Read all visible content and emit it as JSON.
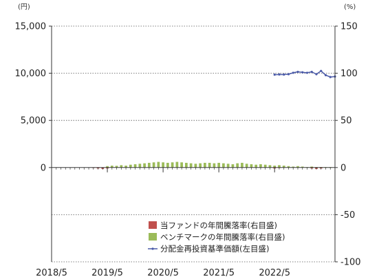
{
  "chart_data": {
    "type": "bar",
    "left_axis_unit": "(円)",
    "right_axis_unit": "(%)",
    "y_left": {
      "range": [
        -10000,
        15000
      ],
      "ticks": [
        15000,
        10000,
        5000,
        0
      ],
      "tick_labels": [
        "15,000",
        "10,000",
        "5,000",
        "0"
      ]
    },
    "y_right": {
      "range": [
        -100,
        150
      ],
      "ticks": [
        150,
        100,
        50,
        0,
        -50,
        -100
      ],
      "tick_labels": [
        "150",
        "100",
        "50",
        "0",
        "-50",
        "-100"
      ]
    },
    "x_ticks": [
      "2018/5",
      "2019/5",
      "2020/5",
      "2021/5",
      "2022/5"
    ],
    "x_tick_months": [
      0,
      12,
      24,
      36,
      48
    ],
    "x_range_months": [
      0,
      61
    ],
    "grid": "horizontal dotted",
    "legend_position": "bottom-right",
    "legend": [
      {
        "label": "当ファンドの年間騰落率(右目盛)",
        "color": "#c0504d"
      },
      {
        "label": "ベンチマークの年間騰落率(右目盛)",
        "color": "#9bbb59"
      },
      {
        "label": "分配金再投資基準価額(左目盛)",
        "color": "#4a5aa8"
      }
    ],
    "series": [
      {
        "name": "ベンチマークの年間騰落率(右目盛)",
        "axis": "right",
        "type": "bar",
        "color": "#9bbb59",
        "points": [
          [
            12,
            1.5
          ],
          [
            13,
            2
          ],
          [
            14,
            1.8
          ],
          [
            15,
            2.5
          ],
          [
            16,
            2
          ],
          [
            17,
            3
          ],
          [
            18,
            3.5
          ],
          [
            19,
            4
          ],
          [
            20,
            4.5
          ],
          [
            21,
            5
          ],
          [
            22,
            5.5
          ],
          [
            23,
            6
          ],
          [
            24,
            5.5
          ],
          [
            25,
            5
          ],
          [
            26,
            5.5
          ],
          [
            27,
            6
          ],
          [
            28,
            5.5
          ],
          [
            29,
            5
          ],
          [
            30,
            4.5
          ],
          [
            31,
            4
          ],
          [
            32,
            4.5
          ],
          [
            33,
            5
          ],
          [
            34,
            5
          ],
          [
            35,
            4.5
          ],
          [
            36,
            5
          ],
          [
            37,
            4.5
          ],
          [
            38,
            4
          ],
          [
            39,
            3.5
          ],
          [
            40,
            4.5
          ],
          [
            41,
            5
          ],
          [
            42,
            4
          ],
          [
            43,
            3.5
          ],
          [
            44,
            3
          ],
          [
            45,
            3.5
          ],
          [
            46,
            3
          ],
          [
            47,
            2.5
          ],
          [
            48,
            2
          ],
          [
            49,
            2.5
          ],
          [
            50,
            2
          ],
          [
            51,
            1.5
          ],
          [
            52,
            1
          ],
          [
            53,
            1.5
          ],
          [
            54,
            1
          ],
          [
            55,
            0.5
          ],
          [
            56,
            1
          ],
          [
            57,
            0.5
          ],
          [
            58,
            0.5
          ],
          [
            59,
            0.5
          ],
          [
            60,
            0.5
          ]
        ]
      },
      {
        "name": "当ファンドの年間騰落率(右目盛)",
        "axis": "right",
        "type": "bar",
        "color": "#c0504d",
        "points": [
          [
            9,
            -0.5
          ],
          [
            10,
            -1
          ],
          [
            11,
            -1.5
          ],
          [
            12,
            -1
          ],
          [
            48,
            -1
          ],
          [
            49,
            -0.5
          ],
          [
            56,
            -1
          ],
          [
            57,
            -1.5
          ],
          [
            58,
            -1
          ]
        ]
      },
      {
        "name": "分配金再投資基準価額(左目盛)",
        "axis": "left",
        "type": "line",
        "color": "#4a5aa8",
        "points": [
          [
            48,
            9850
          ],
          [
            49,
            9870
          ],
          [
            50,
            9860
          ],
          [
            51,
            9900
          ],
          [
            52,
            10050
          ],
          [
            53,
            10150
          ],
          [
            54,
            10100
          ],
          [
            55,
            10050
          ],
          [
            56,
            10150
          ],
          [
            57,
            9900
          ],
          [
            58,
            10250
          ],
          [
            59,
            9800
          ],
          [
            60,
            9600
          ],
          [
            61,
            9650
          ]
        ]
      }
    ]
  }
}
